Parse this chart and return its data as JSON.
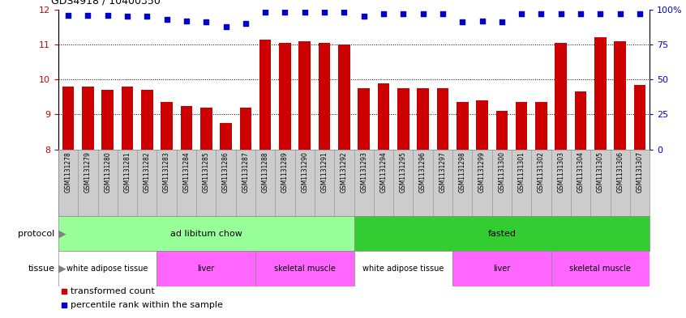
{
  "title": "GDS4918 / 10400350",
  "samples": [
    "GSM1131278",
    "GSM1131279",
    "GSM1131280",
    "GSM1131281",
    "GSM1131282",
    "GSM1131283",
    "GSM1131284",
    "GSM1131285",
    "GSM1131286",
    "GSM1131287",
    "GSM1131288",
    "GSM1131289",
    "GSM1131290",
    "GSM1131291",
    "GSM1131292",
    "GSM1131293",
    "GSM1131294",
    "GSM1131295",
    "GSM1131296",
    "GSM1131297",
    "GSM1131298",
    "GSM1131299",
    "GSM1131300",
    "GSM1131301",
    "GSM1131302",
    "GSM1131303",
    "GSM1131304",
    "GSM1131305",
    "GSM1131306",
    "GSM1131307"
  ],
  "bar_values": [
    9.8,
    9.8,
    9.7,
    9.8,
    9.7,
    9.35,
    9.25,
    9.2,
    8.75,
    9.2,
    11.15,
    11.05,
    11.1,
    11.05,
    11.0,
    9.75,
    9.9,
    9.75,
    9.75,
    9.75,
    9.35,
    9.4,
    9.1,
    9.35,
    9.35,
    11.05,
    9.65,
    11.2,
    11.1,
    9.85
  ],
  "percentile_values": [
    96,
    96,
    96,
    95,
    95,
    93,
    92,
    91,
    88,
    90,
    98,
    98,
    98,
    98,
    98,
    95,
    97,
    97,
    97,
    97,
    91,
    92,
    91,
    97,
    97,
    97,
    97,
    97,
    97,
    97
  ],
  "ylim_left": [
    8,
    12
  ],
  "ylim_right": [
    0,
    100
  ],
  "yticks_left": [
    8,
    9,
    10,
    11,
    12
  ],
  "yticks_right": [
    0,
    25,
    50,
    75,
    100
  ],
  "bar_color": "#CC0000",
  "dot_color": "#0000CC",
  "background_color": "#ffffff",
  "xticklabel_bg": "#cccccc",
  "protocol_color_1": "#99FF99",
  "protocol_color_2": "#33CC33",
  "tissue_color_white": "#ffffff",
  "tissue_color_pink": "#FF66FF",
  "protocol_labels": [
    "ad libitum chow",
    "fasted"
  ],
  "tissue_labels": [
    "white adipose tissue",
    "liver",
    "skeletal muscle"
  ],
  "legend_red_label": "transformed count",
  "legend_blue_label": "percentile rank within the sample"
}
